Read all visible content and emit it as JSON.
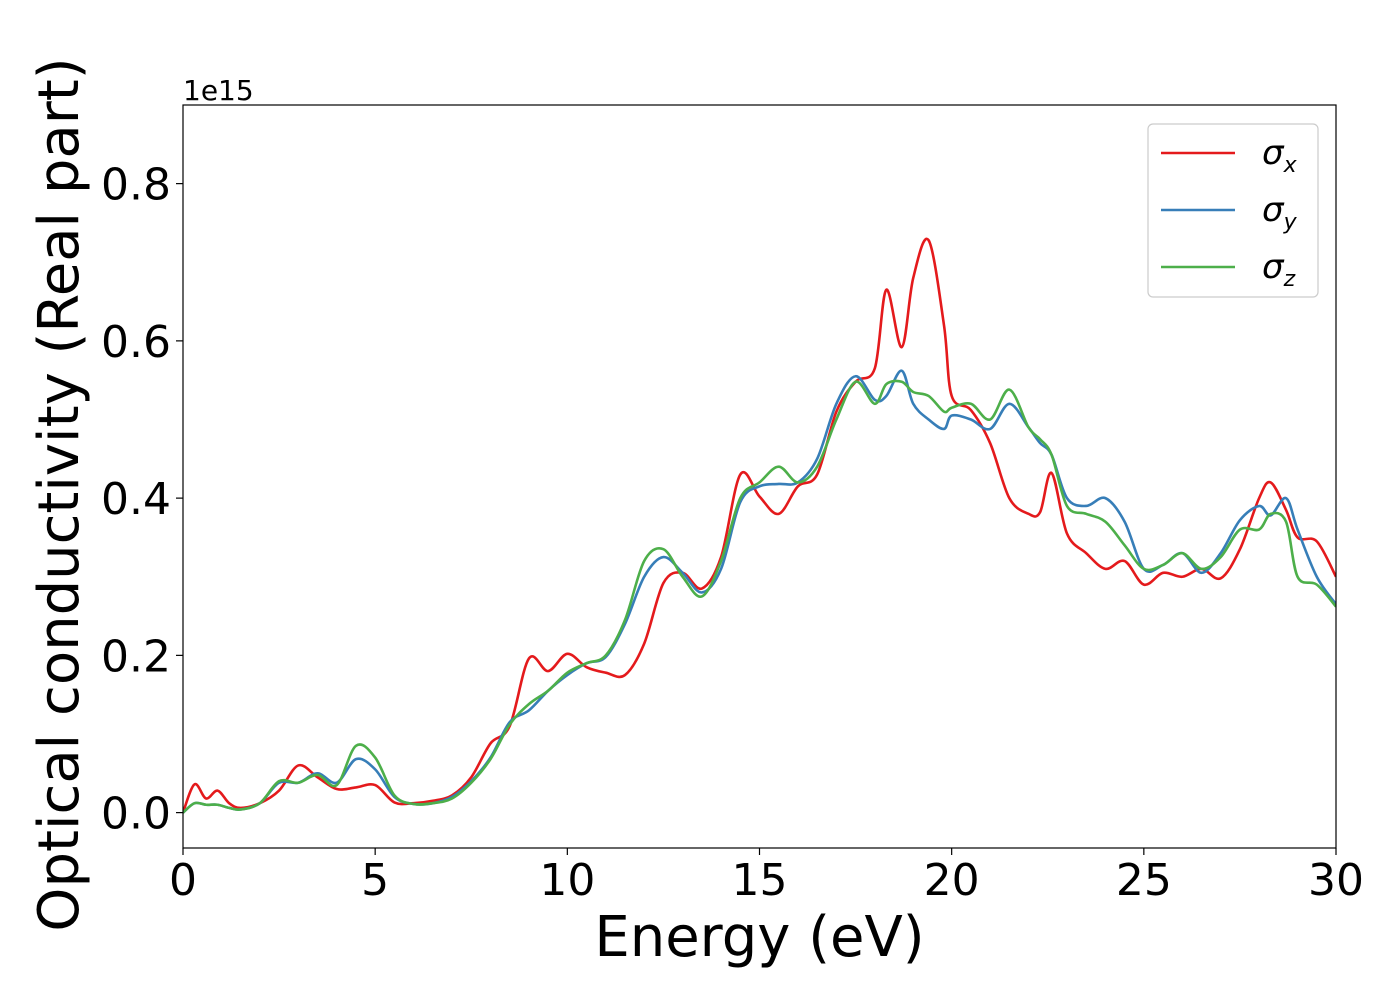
{
  "chart_data": {
    "type": "line",
    "xlabel": "Energy (eV)",
    "ylabel": "Optical conductivity (Real part)",
    "y_offset_label": "1e15",
    "xlim": [
      0,
      30
    ],
    "ylim": [
      -0.045,
      0.9
    ],
    "x_ticks": [
      0,
      5,
      10,
      15,
      20,
      25,
      30
    ],
    "x_tick_labels": [
      "0",
      "5",
      "10",
      "15",
      "20",
      "25",
      "30"
    ],
    "y_ticks": [
      0.0,
      0.2,
      0.4,
      0.6,
      0.8
    ],
    "y_tick_labels": [
      "0.0",
      "0.2",
      "0.4",
      "0.6",
      "0.8"
    ],
    "grid": false,
    "legend_position": "top-right",
    "x": [
      0,
      0.3,
      0.6,
      0.9,
      1.2,
      1.5,
      2,
      2.5,
      3,
      3.5,
      4,
      4.5,
      5,
      5.5,
      6,
      6.5,
      7,
      7.5,
      8,
      8.5,
      9,
      9.5,
      10,
      10.5,
      11,
      11.5,
      12,
      12.5,
      13,
      13.5,
      14,
      14.5,
      15,
      15.5,
      16,
      16.5,
      17,
      17.5,
      18,
      18.3,
      18.7,
      19,
      19.4,
      19.8,
      20,
      20.5,
      21,
      21.5,
      22,
      22.3,
      22.6,
      23,
      23.5,
      24,
      24.5,
      25,
      25.5,
      26,
      26.5,
      27,
      27.5,
      28,
      28.3,
      28.7,
      29,
      29.5,
      30
    ],
    "series": [
      {
        "name": "σx",
        "label_base": "σ",
        "label_sub": "x",
        "color": "#e41a1c",
        "values": [
          0,
          0.036,
          0.018,
          0.028,
          0.012,
          0.006,
          0.012,
          0.028,
          0.06,
          0.045,
          0.03,
          0.032,
          0.035,
          0.013,
          0.012,
          0.015,
          0.022,
          0.045,
          0.088,
          0.11,
          0.196,
          0.18,
          0.202,
          0.185,
          0.178,
          0.175,
          0.215,
          0.292,
          0.305,
          0.285,
          0.325,
          0.43,
          0.402,
          0.38,
          0.415,
          0.43,
          0.51,
          0.548,
          0.565,
          0.665,
          0.592,
          0.68,
          0.728,
          0.62,
          0.53,
          0.512,
          0.47,
          0.4,
          0.38,
          0.382,
          0.432,
          0.355,
          0.33,
          0.31,
          0.32,
          0.29,
          0.305,
          0.3,
          0.31,
          0.298,
          0.335,
          0.4,
          0.42,
          0.385,
          0.35,
          0.345,
          0.3
        ]
      },
      {
        "name": "σy",
        "label_base": "σ",
        "label_sub": "y",
        "color": "#377eb8",
        "values": [
          0,
          0.012,
          0.01,
          0.01,
          0.006,
          0.004,
          0.012,
          0.038,
          0.038,
          0.05,
          0.038,
          0.068,
          0.055,
          0.02,
          0.011,
          0.012,
          0.02,
          0.04,
          0.07,
          0.115,
          0.13,
          0.155,
          0.175,
          0.19,
          0.198,
          0.24,
          0.3,
          0.325,
          0.305,
          0.28,
          0.31,
          0.395,
          0.415,
          0.418,
          0.42,
          0.45,
          0.52,
          0.555,
          0.525,
          0.53,
          0.562,
          0.52,
          0.5,
          0.488,
          0.505,
          0.5,
          0.488,
          0.52,
          0.49,
          0.47,
          0.455,
          0.4,
          0.39,
          0.4,
          0.37,
          0.31,
          0.315,
          0.33,
          0.305,
          0.33,
          0.372,
          0.39,
          0.378,
          0.4,
          0.36,
          0.3,
          0.265
        ]
      },
      {
        "name": "σz",
        "label_base": "σ",
        "label_sub": "z",
        "color": "#4daf4a",
        "values": [
          0,
          0.012,
          0.01,
          0.01,
          0.006,
          0.004,
          0.012,
          0.04,
          0.038,
          0.048,
          0.035,
          0.085,
          0.07,
          0.022,
          0.011,
          0.012,
          0.018,
          0.038,
          0.068,
          0.112,
          0.138,
          0.155,
          0.178,
          0.19,
          0.2,
          0.245,
          0.32,
          0.335,
          0.3,
          0.275,
          0.32,
          0.4,
          0.42,
          0.44,
          0.42,
          0.44,
          0.5,
          0.548,
          0.52,
          0.545,
          0.548,
          0.535,
          0.53,
          0.51,
          0.515,
          0.52,
          0.5,
          0.538,
          0.49,
          0.475,
          0.455,
          0.39,
          0.38,
          0.37,
          0.34,
          0.31,
          0.315,
          0.33,
          0.31,
          0.325,
          0.36,
          0.36,
          0.38,
          0.37,
          0.3,
          0.29,
          0.262
        ]
      }
    ]
  }
}
